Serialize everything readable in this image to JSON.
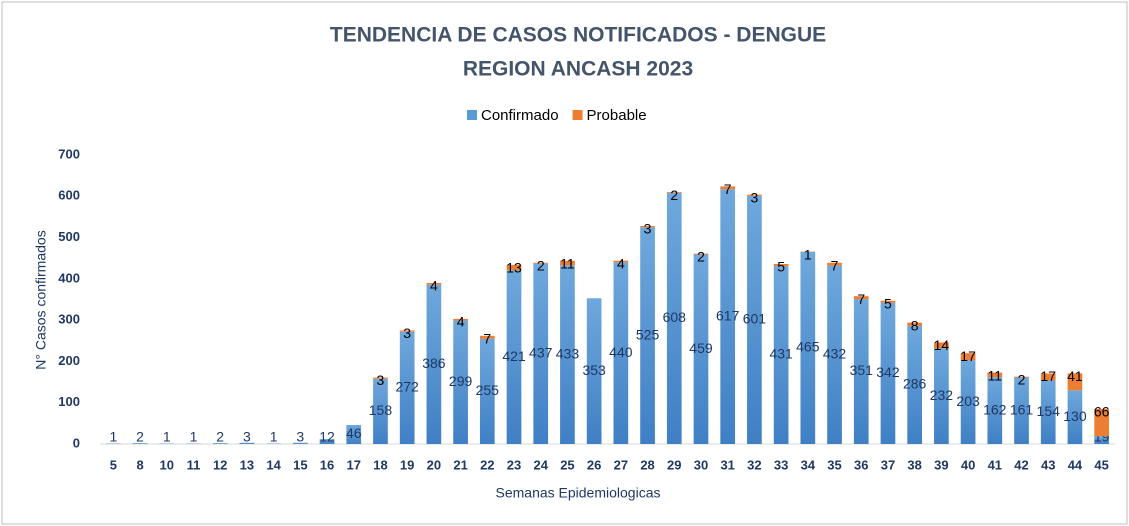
{
  "chart_data": {
    "type": "stacked_bar",
    "title": "TENDENCIA DE CASOS NOTIFICADOS - DENGUE",
    "subtitle": "REGION ANCASH 2023",
    "x_label": "Semanas Epidemiologicas",
    "y_label": "N° Casos confirmados",
    "categories": [
      "5",
      "8",
      "10",
      "11",
      "12",
      "13",
      "14",
      "15",
      "16",
      "17",
      "18",
      "19",
      "20",
      "21",
      "22",
      "23",
      "24",
      "25",
      "26",
      "27",
      "28",
      "29",
      "30",
      "31",
      "32",
      "33",
      "34",
      "35",
      "36",
      "37",
      "38",
      "39",
      "40",
      "41",
      "42",
      "43",
      "44",
      "45"
    ],
    "series": [
      {
        "name": "Confirmado",
        "color": "#5b9bd5",
        "values": [
          1,
          2,
          1,
          1,
          2,
          3,
          1,
          3,
          12,
          46,
          158,
          272,
          386,
          299,
          255,
          421,
          437,
          433,
          353,
          440,
          525,
          608,
          459,
          617,
          601,
          431,
          465,
          432,
          351,
          342,
          286,
          232,
          203,
          162,
          161,
          154,
          130,
          19
        ]
      },
      {
        "name": "Probable",
        "color": "#ed7d31",
        "values": [
          null,
          null,
          null,
          null,
          null,
          null,
          null,
          null,
          null,
          null,
          3,
          3,
          4,
          4,
          7,
          13,
          2,
          11,
          null,
          4,
          3,
          2,
          2,
          7,
          3,
          5,
          1,
          7,
          7,
          5,
          8,
          14,
          17,
          11,
          2,
          17,
          41,
          66
        ]
      }
    ],
    "ylim": [
      0,
      700
    ],
    "yticks": [
      0,
      100,
      200,
      300,
      400,
      500,
      600,
      700
    ],
    "legend": "top",
    "grid": false
  }
}
